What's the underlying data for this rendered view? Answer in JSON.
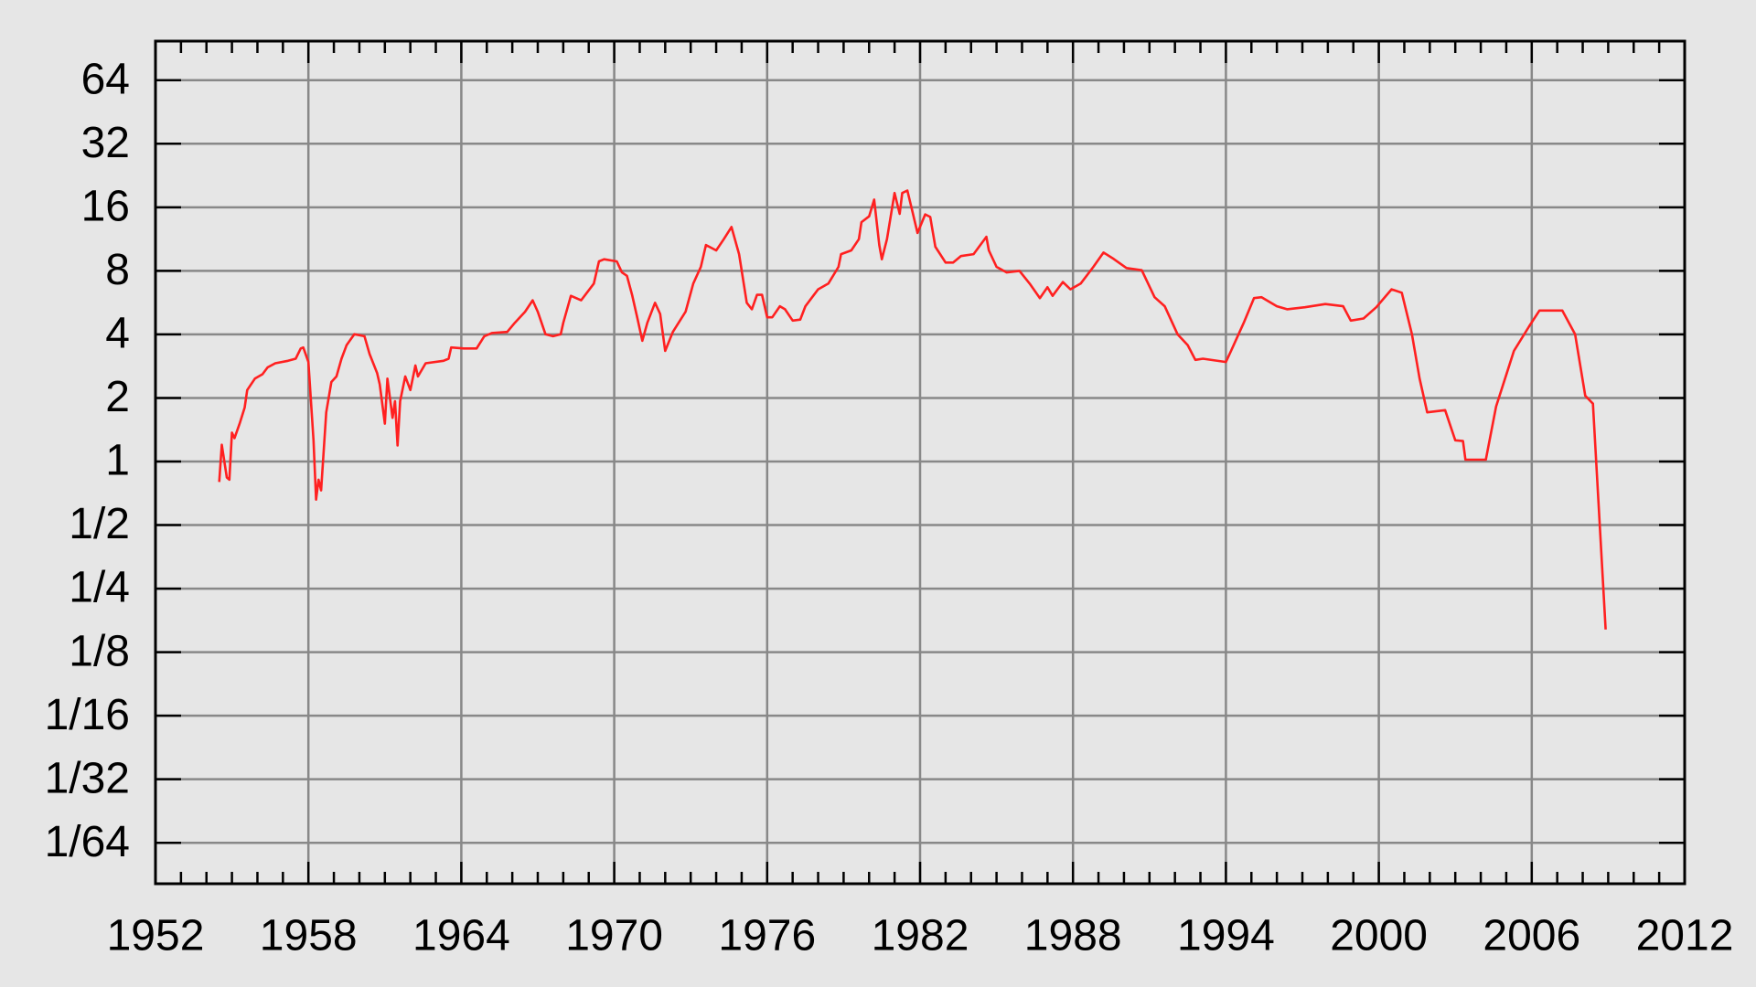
{
  "chart_data": {
    "type": "line",
    "xlim": [
      1952,
      2012
    ],
    "xticks": [
      1952,
      1958,
      1964,
      1970,
      1976,
      1982,
      1988,
      1994,
      2000,
      2006,
      2012
    ],
    "xminorticks": [
      1953,
      1954,
      1955,
      1956,
      1957,
      1959,
      1960,
      1961,
      1962,
      1963,
      1965,
      1966,
      1967,
      1968,
      1969,
      1971,
      1972,
      1973,
      1974,
      1975,
      1977,
      1978,
      1979,
      1980,
      1981,
      1983,
      1984,
      1985,
      1986,
      1987,
      1989,
      1990,
      1991,
      1992,
      1993,
      1995,
      1996,
      1997,
      1998,
      1999,
      2001,
      2002,
      2003,
      2004,
      2005,
      2007,
      2008,
      2009,
      2010,
      2011
    ],
    "ylim": [
      0.01,
      98
    ],
    "log_y": true,
    "yticks": [
      {
        "value": 0.015625,
        "label": "1/64"
      },
      {
        "value": 0.03125,
        "label": "1/32"
      },
      {
        "value": 0.0625,
        "label": "1/16"
      },
      {
        "value": 0.125,
        "label": "1/8"
      },
      {
        "value": 0.25,
        "label": "1/4"
      },
      {
        "value": 0.5,
        "label": "1/2"
      },
      1,
      2,
      4,
      8,
      16,
      32,
      64
    ],
    "grid": true,
    "series": [
      {
        "color": "#ff2020",
        "x": [
          1954.5,
          1954.6,
          1954.8,
          1954.9,
          1955.0,
          1955.1,
          1955.3,
          1955.5,
          1955.6,
          1955.9,
          1956.2,
          1956.4,
          1956.7,
          1957.2,
          1957.5,
          1957.7,
          1957.8,
          1958.0,
          1958.2,
          1958.3,
          1958.4,
          1958.5,
          1958.7,
          1958.9,
          1959.1,
          1959.3,
          1959.5,
          1959.8,
          1960.2,
          1960.4,
          1960.7,
          1960.8,
          1961.0,
          1961.1,
          1961.3,
          1961.4,
          1961.5,
          1961.6,
          1961.8,
          1962.0,
          1962.2,
          1962.3,
          1962.6,
          1963.3,
          1963.5,
          1963.6,
          1964.1,
          1964.6,
          1964.9,
          1965.2,
          1965.8,
          1966.1,
          1966.5,
          1966.8,
          1967.0,
          1967.3,
          1967.6,
          1967.9,
          1968.0,
          1968.3,
          1968.7,
          1969.2,
          1969.4,
          1969.6,
          1970.1,
          1970.3,
          1970.5,
          1970.7,
          1970.9,
          1971.1,
          1971.3,
          1971.6,
          1971.8,
          1972.0,
          1972.3,
          1972.8,
          1973.1,
          1973.4,
          1973.6,
          1974.0,
          1974.3,
          1974.6,
          1974.9,
          1975.2,
          1975.4,
          1975.6,
          1975.8,
          1976.0,
          1976.2,
          1976.5,
          1976.7,
          1977.0,
          1977.3,
          1977.5,
          1978.0,
          1978.4,
          1978.8,
          1978.9,
          1979.3,
          1979.6,
          1979.7,
          1980.0,
          1980.2,
          1980.4,
          1980.5,
          1980.7,
          1981.0,
          1981.2,
          1981.3,
          1981.5,
          1981.7,
          1981.9,
          1982.2,
          1982.4,
          1982.6,
          1983.0,
          1983.3,
          1983.6,
          1984.1,
          1984.6,
          1984.7,
          1985.0,
          1985.4,
          1985.9,
          1986.3,
          1986.7,
          1987.0,
          1987.2,
          1987.6,
          1987.9,
          1988.3,
          1988.8,
          1989.2,
          1989.6,
          1990.1,
          1990.7,
          1991.2,
          1991.6,
          1992.1,
          1992.5,
          1992.8,
          1993.1,
          1994.0,
          1994.2,
          1994.7,
          1995.1,
          1995.4,
          1996.0,
          1996.4,
          1997.1,
          1997.9,
          1998.6,
          1998.9,
          1999.4,
          1999.9,
          2000.5,
          2000.9,
          2001.3,
          2001.6,
          2001.9,
          2002.6,
          2003.0,
          2003.3,
          2003.4,
          2004.2,
          2004.6,
          2005.3,
          2005.9,
          2006.3,
          2007.2,
          2007.7,
          2008.1,
          2008.4,
          2008.9
        ],
        "values": [
          0.8,
          1.2,
          0.84,
          0.82,
          1.37,
          1.29,
          1.51,
          1.8,
          2.18,
          2.47,
          2.59,
          2.79,
          2.92,
          3.0,
          3.07,
          3.43,
          3.47,
          2.96,
          1.26,
          0.66,
          0.82,
          0.73,
          1.71,
          2.38,
          2.53,
          3.07,
          3.56,
          4.01,
          3.92,
          3.23,
          2.62,
          2.32,
          1.51,
          2.47,
          1.61,
          1.93,
          1.19,
          1.93,
          2.53,
          2.18,
          2.85,
          2.53,
          2.92,
          3.0,
          3.07,
          3.47,
          3.43,
          3.43,
          3.92,
          4.06,
          4.11,
          4.54,
          5.12,
          5.8,
          5.12,
          4.01,
          3.92,
          4.01,
          4.54,
          6.09,
          5.8,
          6.96,
          8.87,
          9.08,
          8.87,
          7.86,
          7.58,
          6.16,
          4.82,
          3.73,
          4.54,
          5.65,
          5.0,
          3.34,
          4.11,
          5.12,
          6.96,
          8.36,
          10.6,
          10.0,
          11.3,
          12.9,
          9.6,
          5.65,
          5.26,
          6.16,
          6.16,
          4.82,
          4.82,
          5.44,
          5.26,
          4.65,
          4.7,
          5.44,
          6.54,
          6.96,
          8.36,
          9.6,
          10.0,
          11.3,
          13.6,
          14.5,
          17.4,
          10.6,
          9.08,
          11.3,
          18.7,
          14.9,
          18.7,
          19.2,
          15.3,
          12.1,
          14.8,
          14.4,
          10.4,
          8.76,
          8.76,
          9.4,
          9.6,
          11.6,
          10.0,
          8.36,
          7.86,
          8.0,
          6.96,
          5.94,
          6.69,
          6.09,
          7.08,
          6.54,
          6.96,
          8.36,
          9.77,
          9.1,
          8.25,
          8.05,
          6.0,
          5.44,
          4.01,
          3.56,
          3.03,
          3.07,
          2.96,
          3.34,
          4.54,
          5.94,
          6.0,
          5.44,
          5.26,
          5.38,
          5.57,
          5.44,
          4.65,
          4.76,
          5.38,
          6.54,
          6.3,
          4.01,
          2.47,
          1.71,
          1.75,
          1.26,
          1.25,
          1.02,
          1.02,
          1.82,
          3.34,
          4.37,
          5.19,
          5.19,
          4.01,
          2.05,
          1.88,
          0.16
        ]
      }
    ]
  }
}
